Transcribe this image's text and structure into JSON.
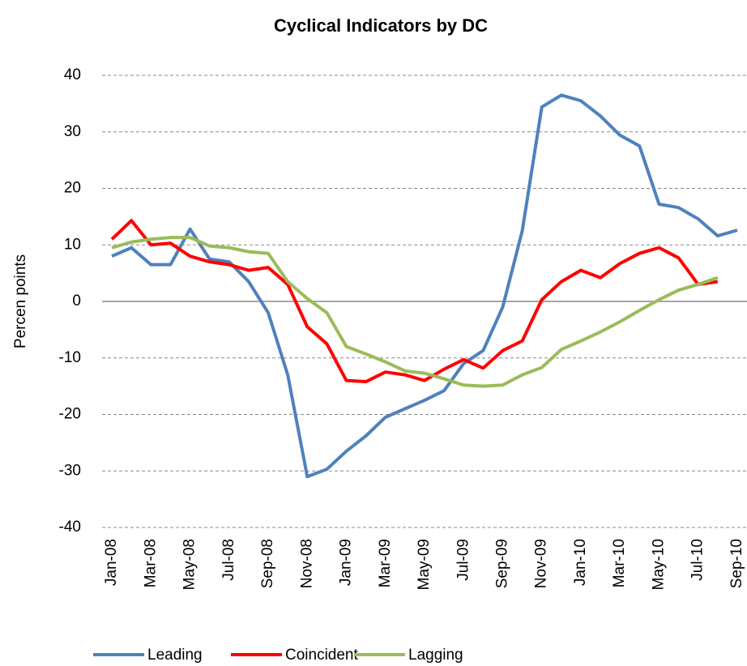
{
  "chart_data": {
    "type": "line",
    "title": "Cyclical Indicators by DC",
    "y_label": "Percen points",
    "categories": [
      "Jan-08",
      null,
      "Mar-08",
      null,
      "May-08",
      null,
      "Jul-08",
      null,
      "Sep-08",
      null,
      "Nov-08",
      null,
      "Jan-09",
      null,
      "Mar-09",
      null,
      "May-09",
      null,
      "Jul-09",
      null,
      "Sep-09",
      null,
      "Nov-09",
      null,
      "Jan-10",
      null,
      "Mar-10",
      null,
      "May-10",
      null,
      "Jul-10",
      null,
      "Sep-10"
    ],
    "series": [
      {
        "name": "Leading",
        "color": "#4f81bd",
        "values": [
          8,
          9.5,
          6.5,
          6.5,
          12.8,
          7.5,
          7,
          3.5,
          -2,
          -13,
          -31,
          -29.7,
          -26.5,
          -23.8,
          -20.5,
          -19,
          -17.5,
          -15.8,
          -11,
          -8.7,
          -1,
          12.5,
          34.4,
          36.5,
          35.5,
          32.8,
          29.4,
          27.5,
          17.2,
          16.6,
          14.6,
          11.6,
          12.6
        ]
      },
      {
        "name": "Coincident",
        "color": "#ff0000",
        "values": [
          11,
          14.3,
          10,
          10.3,
          8,
          7,
          6.5,
          5.5,
          6,
          3,
          -4.5,
          -7.5,
          -14,
          -14.2,
          -12.5,
          -13,
          -14,
          -12,
          -10.3,
          -11.8,
          -8.7,
          -7,
          0.3,
          3.5,
          5.5,
          4.2,
          6.7,
          8.5,
          9.5,
          7.7,
          3,
          3.5,
          null
        ]
      },
      {
        "name": "Lagging",
        "color": "#9bbb59",
        "values": [
          9.5,
          10.5,
          11,
          11.3,
          11.3,
          9.8,
          9.5,
          8.8,
          8.5,
          3.5,
          0.5,
          -2,
          -8,
          -9.3,
          -10.7,
          -12.3,
          -12.7,
          -13.7,
          -14.8,
          -15,
          -14.8,
          -13,
          -11.7,
          -8.5,
          -7,
          -5.4,
          -3.6,
          -1.6,
          0.3,
          2,
          3,
          4.2,
          null
        ]
      }
    ],
    "ylim": [
      -40,
      40
    ],
    "yticks": [
      -40,
      -30,
      -20,
      -10,
      0,
      10,
      20,
      30,
      40
    ],
    "grid": true
  }
}
